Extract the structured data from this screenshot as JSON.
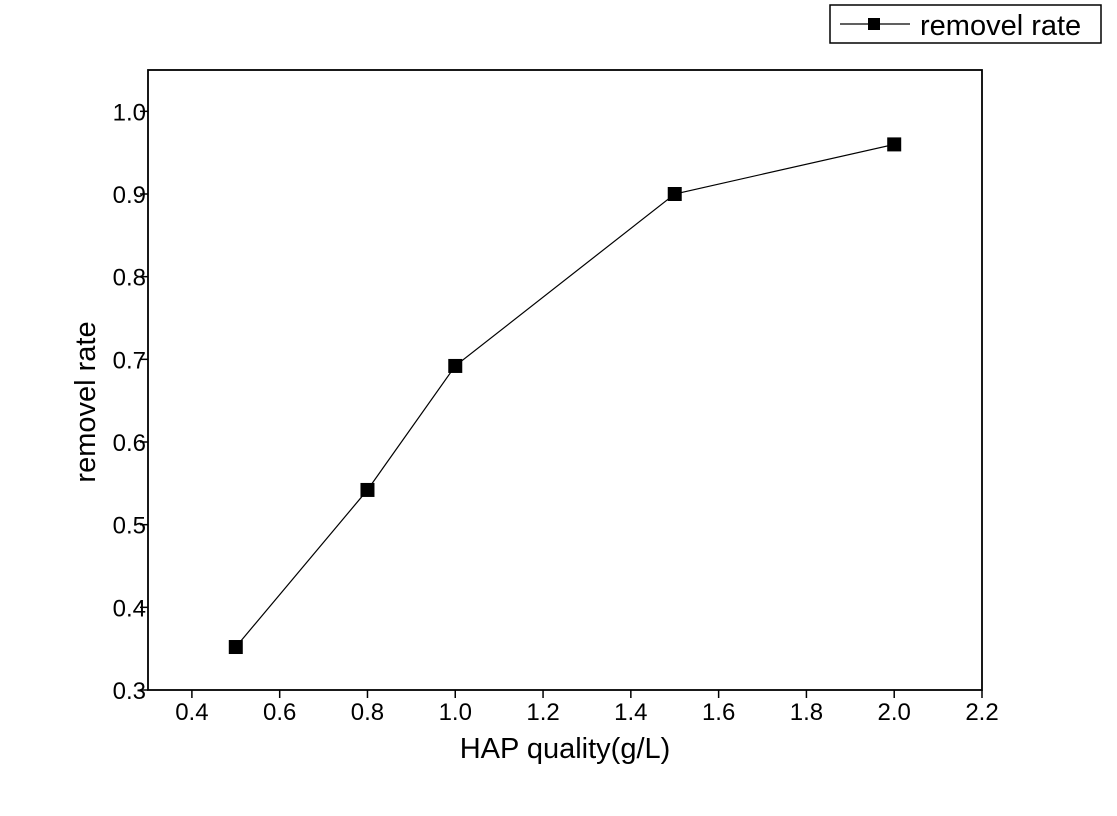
{
  "chart_data": {
    "type": "line",
    "title": "",
    "xlabel": "HAP quality(g/L)",
    "ylabel": "removel rate",
    "xlim": [
      0.3,
      2.2
    ],
    "ylim": [
      0.3,
      1.05
    ],
    "x_ticks": [
      "0.4",
      "0.6",
      "0.8",
      "1.0",
      "1.2",
      "1.4",
      "1.6",
      "1.8",
      "2.0",
      "2.2"
    ],
    "y_ticks": [
      "0.3",
      "0.4",
      "0.5",
      "0.6",
      "0.7",
      "0.8",
      "0.9",
      "1.0"
    ],
    "grid": false,
    "legend": {
      "position": "top-right",
      "entries": [
        "removel rate"
      ]
    },
    "series": [
      {
        "name": "removel rate",
        "color": "#000000",
        "marker": "square",
        "x": [
          0.5,
          0.8,
          1.0,
          1.5,
          2.0
        ],
        "y": [
          0.352,
          0.542,
          0.692,
          0.9,
          0.96
        ]
      }
    ]
  }
}
